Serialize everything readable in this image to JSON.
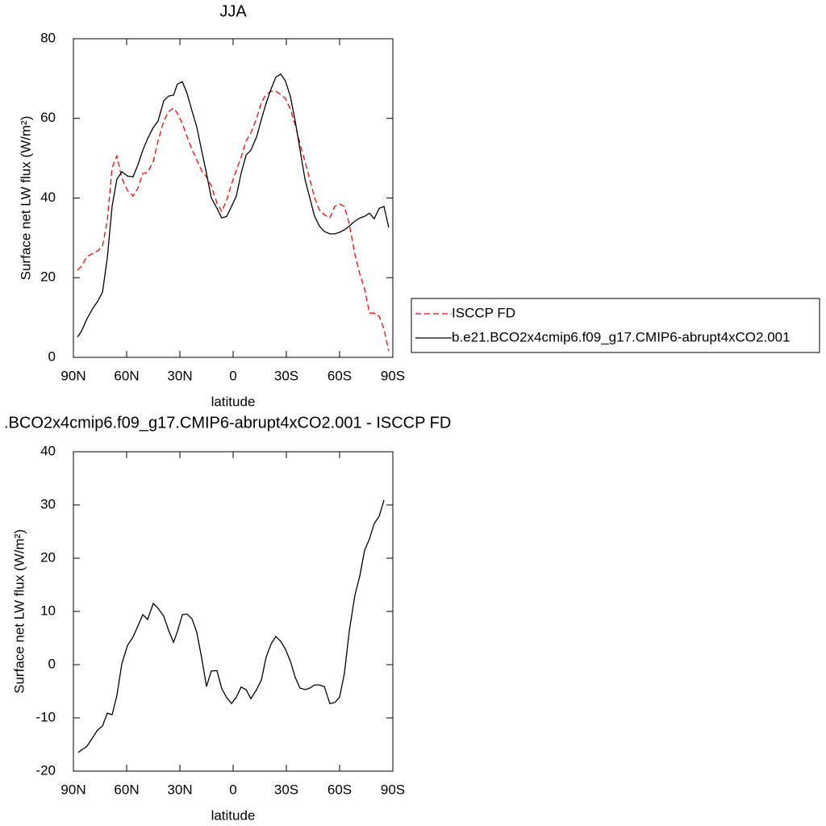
{
  "chart_data": [
    {
      "type": "line",
      "title": "JJA",
      "xlabel": "latitude",
      "ylabel": "Surface net LW flux (W/m²)",
      "xlim": [
        90,
        -90
      ],
      "xticks": [
        {
          "value": 90,
          "label": "90N"
        },
        {
          "value": 60,
          "label": "60N"
        },
        {
          "value": 30,
          "label": "30N"
        },
        0,
        {
          "value": -30,
          "label": "30S"
        },
        {
          "value": -60,
          "label": "60S"
        },
        {
          "value": -90,
          "label": "90S"
        }
      ],
      "ylim": [
        0,
        80
      ],
      "yticks": [
        0,
        20,
        40,
        60,
        80
      ],
      "legend": "right",
      "x": [
        87.7,
        85.5,
        82.3,
        79.1,
        76.4,
        73.6,
        70.9,
        68.2,
        65.5,
        62.7,
        59.5,
        56.4,
        53.6,
        50.9,
        48.2,
        45,
        42.3,
        39.1,
        36.4,
        33.6,
        31.4,
        28.6,
        25.9,
        23.2,
        20.5,
        17.7,
        15,
        12.3,
        9.1,
        6.4,
        3.6,
        0.9,
        -1.8,
        -4.5,
        -7.3,
        -10,
        -13.2,
        -15.9,
        -18.6,
        -21.4,
        -24.1,
        -26.8,
        -29.5,
        -32.3,
        -35,
        -37.7,
        -40.5,
        -43.2,
        -45.9,
        -48.6,
        -51.4,
        -54.5,
        -57.3,
        -60,
        -62.7,
        -65.5,
        -68.6,
        -71.4,
        -74.1,
        -76.8,
        -79.5,
        -82.3,
        -85,
        -87.7
      ],
      "series": [
        {
          "name": "ISCCP FD",
          "color": "#ff0000",
          "dashed": true,
          "values": [
            21.9,
            22.9,
            25.3,
            26.1,
            26.7,
            27.9,
            34.4,
            47.6,
            50.6,
            44.9,
            41.9,
            40.5,
            42.5,
            46.2,
            46.4,
            49.2,
            54.3,
            59.3,
            61.7,
            62.6,
            61.3,
            58.7,
            55.3,
            52.2,
            49.6,
            46.8,
            45.3,
            43.1,
            38.7,
            36.6,
            39.5,
            43.5,
            47,
            50.2,
            54.3,
            56.3,
            59.9,
            64,
            66,
            66.8,
            66.8,
            66,
            65,
            62.3,
            58.3,
            53.6,
            49.2,
            44.7,
            40.1,
            37,
            35.8,
            35,
            37.9,
            38.5,
            37.9,
            33.4,
            25.9,
            20.9,
            17.2,
            11.1,
            11.1,
            10.3,
            7.1,
            1.6
          ]
        },
        {
          "name": "b.e21.BCO2x4cmip6.f09_g17.CMIP6-abrupt4xCO2.001",
          "color": "#000000",
          "dashed": false,
          "values": [
            5.1,
            6.5,
            9.7,
            12.3,
            14,
            16.4,
            24.9,
            38,
            44.7,
            46.6,
            45.5,
            45.3,
            48.4,
            52,
            54.9,
            57.7,
            59.3,
            64.4,
            65.6,
            65.8,
            68.6,
            69.2,
            66.2,
            61.9,
            57.9,
            51.8,
            46.2,
            40.1,
            37.4,
            35,
            35.4,
            37.9,
            40.5,
            46.2,
            50.8,
            52,
            55.3,
            59.7,
            63.8,
            67.4,
            70.4,
            71.1,
            69.4,
            65.4,
            59.3,
            52.2,
            44.7,
            40.1,
            35.4,
            33,
            31.6,
            31,
            31,
            31.4,
            32,
            33,
            34.2,
            35,
            35.4,
            36.2,
            34.8,
            37.4,
            37.9,
            32.6
          ]
        }
      ]
    },
    {
      "type": "line",
      "title": ".BCO2x4cmip6.f09_g17.CMIP6-abrupt4xCO2.001 - ISCCP FD",
      "xlabel": "latitude",
      "ylabel": "Surface net LW flux (W/m²)",
      "xlim": [
        90,
        -90
      ],
      "xticks": [
        {
          "value": 90,
          "label": "90N"
        },
        {
          "value": 60,
          "label": "60N"
        },
        {
          "value": 30,
          "label": "30N"
        },
        0,
        {
          "value": -30,
          "label": "30S"
        },
        {
          "value": -60,
          "label": "60S"
        },
        {
          "value": -90,
          "label": "90S"
        }
      ],
      "ylim": [
        -20,
        40
      ],
      "yticks": [
        -20,
        -10,
        0,
        10,
        20,
        30,
        40
      ],
      "x": [
        87.3,
        82.3,
        76.4,
        73.6,
        70.9,
        68.2,
        65.5,
        62.7,
        59.5,
        56.4,
        53.6,
        50.9,
        48.2,
        45,
        42.3,
        39.1,
        36.4,
        33.6,
        31.4,
        28.6,
        25.9,
        23.2,
        20.5,
        17.7,
        15,
        12.3,
        9.1,
        6.4,
        3.6,
        0.9,
        -1.8,
        -4.5,
        -7.3,
        -10,
        -13.2,
        -15.9,
        -18.6,
        -21.4,
        -24.1,
        -26.8,
        -29.5,
        -32.3,
        -35,
        -37.7,
        -40.5,
        -43.2,
        -45.9,
        -48.6,
        -51.4,
        -54.5,
        -57.3,
        -60,
        -62.7,
        -65.5,
        -68.6,
        -71.4,
        -74.1,
        -76.8,
        -79.5,
        -82.3,
        -85
      ],
      "series": [
        {
          "color": "#000000",
          "dashed": false,
          "values": [
            -16.5,
            -15.3,
            -12.3,
            -11.5,
            -9.1,
            -9.4,
            -5.8,
            0.2,
            3.6,
            5.2,
            7.3,
            9.4,
            8.5,
            11.5,
            10.6,
            9.1,
            6.5,
            4.2,
            6.2,
            9.4,
            9.5,
            8.6,
            6.1,
            1.2,
            -4.1,
            -1.2,
            -1.1,
            -4.5,
            -6.2,
            -7.3,
            -6.1,
            -4.2,
            -4.7,
            -6.4,
            -4.7,
            -2.9,
            1.4,
            3.9,
            5.3,
            4.4,
            2.9,
            0.6,
            -2.4,
            -4.4,
            -4.7,
            -4.4,
            -3.8,
            -3.8,
            -4.1,
            -7.3,
            -7.1,
            -6.1,
            -1.7,
            6.4,
            13,
            16.7,
            21.5,
            23.6,
            26.5,
            27.9,
            30.9
          ]
        }
      ]
    }
  ]
}
